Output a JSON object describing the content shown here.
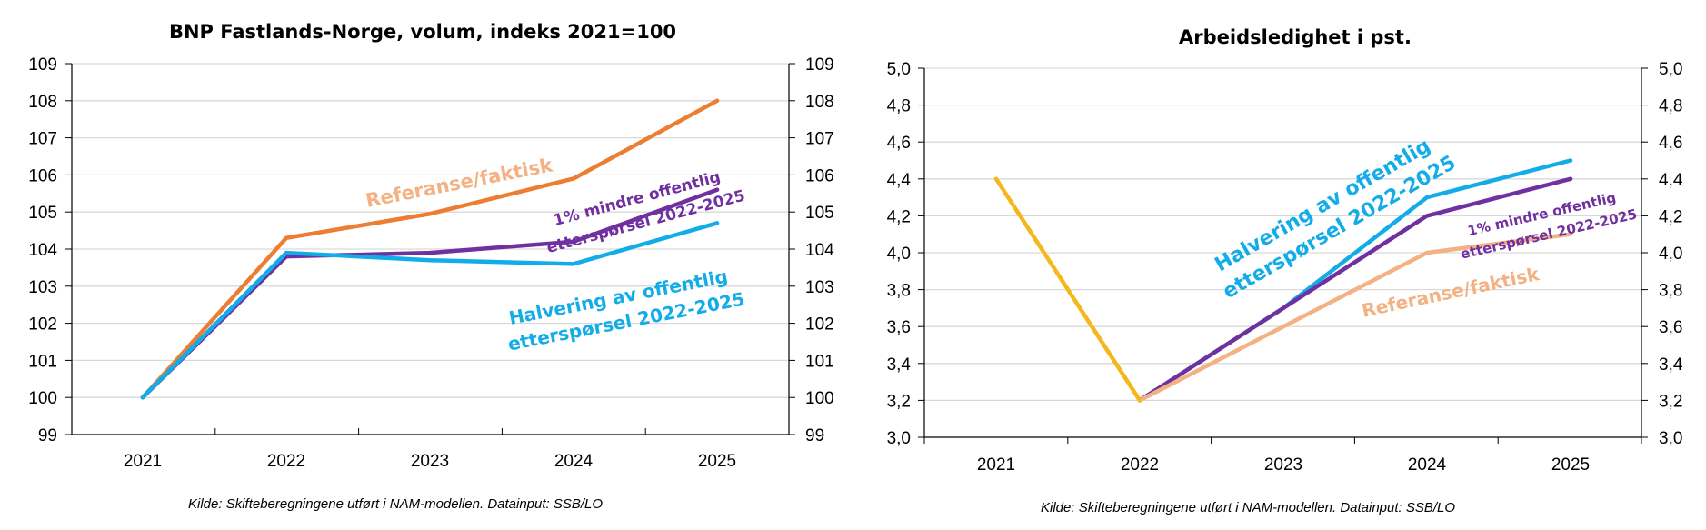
{
  "colors": {
    "orange": "#ED7D31",
    "peach": "#F4B183",
    "purple": "#7030A0",
    "blue": "#12ACE8",
    "yellow": "#F5B81C",
    "grid": "#D9D9D9",
    "axis": "#000000"
  },
  "chart_data": [
    {
      "type": "line",
      "title": "BNP Fastlands-Norge, volum, indeks 2021=100",
      "source": "Kilde:  Skifteberegningene utført i NAM-modellen. Datainput: SSB/LO",
      "categories": [
        "2021",
        "2022",
        "2023",
        "2024",
        "2025"
      ],
      "ylim": [
        99,
        109
      ],
      "yticks": [
        "99",
        "100",
        "101",
        "102",
        "103",
        "104",
        "105",
        "106",
        "107",
        "108",
        "109"
      ],
      "grid": true,
      "secondary_axis": true,
      "series": [
        {
          "name": "Referanse/faktisk",
          "color": "#ED7D31",
          "values": [
            100,
            104.3,
            104.95,
            105.9,
            108.0
          ]
        },
        {
          "name": "1% mindre offentlig etterspørsel 2022-2025",
          "color": "#7030A0",
          "values": [
            100,
            103.8,
            103.9,
            104.2,
            105.6
          ]
        },
        {
          "name": "Halvering av offentlig etterspørsel 2022-2025",
          "color": "#12ACE8",
          "values": [
            100,
            103.9,
            103.7,
            103.6,
            104.7
          ]
        }
      ],
      "annotations": [
        {
          "lines": [
            "Referanse/faktisk"
          ],
          "color": "#F4B183"
        },
        {
          "lines": [
            "1% mindre offentlig",
            "etterspørsel 2022-2025"
          ],
          "color": "#7030A0"
        },
        {
          "lines": [
            "Halvering av offentlig",
            "etterspørsel 2022-2025"
          ],
          "color": "#12ACE8"
        }
      ]
    },
    {
      "type": "line",
      "title": "Arbeidsledighet i pst.",
      "source": "Kilde:  Skifteberegningene utført i NAM-modellen. Datainput: SSB/LO",
      "categories": [
        "2021",
        "2022",
        "2023",
        "2024",
        "2025"
      ],
      "ylim": [
        3.0,
        5.0
      ],
      "yticks": [
        "3,0",
        "3,2",
        "3,4",
        "3,6",
        "3,8",
        "4,0",
        "4,2",
        "4,4",
        "4,6",
        "4,8",
        "5,0"
      ],
      "grid": true,
      "secondary_axis": true,
      "series": [
        {
          "name": "Halvering av offentlig etterspørsel 2022-2025",
          "color": "#12ACE8",
          "values": [
            null,
            3.2,
            3.7,
            4.3,
            4.5
          ]
        },
        {
          "name": "1% mindre offentlig etterspørsel 2022-2025",
          "color": "#7030A0",
          "values": [
            null,
            3.2,
            3.7,
            4.2,
            4.4
          ]
        },
        {
          "name": "Referanse/faktisk",
          "color": "#F4B183",
          "values": [
            null,
            3.2,
            3.6,
            4.0,
            4.1
          ]
        },
        {
          "name": "",
          "color": "#F5B81C",
          "values": [
            4.4,
            3.2,
            null,
            null,
            null
          ]
        }
      ],
      "annotations": [
        {
          "lines": [
            "Halvering av offentlig",
            "etterspørsel 2022-2025"
          ],
          "color": "#12ACE8"
        },
        {
          "lines": [
            "1% mindre offentlig",
            "etterspørsel 2022-2025"
          ],
          "color": "#7030A0"
        },
        {
          "lines": [
            "Referanse/faktisk"
          ],
          "color": "#F4B183"
        }
      ]
    }
  ]
}
